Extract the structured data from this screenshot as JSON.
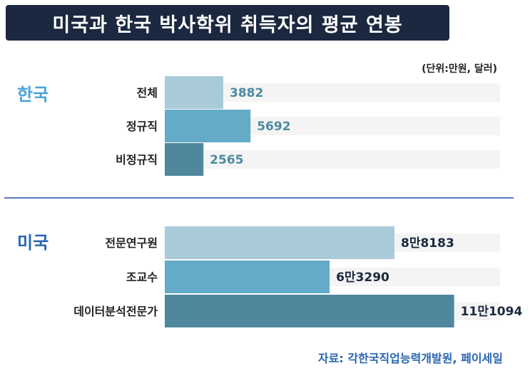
{
  "title": "미국과 한국 박사학위 취득자의 평균 연봉",
  "unit_note": "(단위:만원, 달러)",
  "source": "자료: 각한국직업능력개발원, 페이세일",
  "colors": {
    "title_bg": "#1b2840",
    "korea_label": "#4aa4d6",
    "us_label": "#2966b0",
    "divider": "#5877c4",
    "source": "#2966b0",
    "bar_light": "#a9cbd8",
    "bar_mid": "#63abc6",
    "bar_dark": "#4f879c",
    "korea_value": "#4e8aa0",
    "us_value": "#1b2840",
    "track": "#f4f4f4"
  },
  "chart_data": [
    {
      "type": "bar",
      "orientation": "horizontal",
      "group_label": "한국",
      "categories": [
        "전체",
        "정규직",
        "비정규직"
      ],
      "values": [
        3882,
        5692,
        2565
      ],
      "value_labels": [
        "3882",
        "5692",
        "2565"
      ],
      "unit": "만원"
    },
    {
      "type": "bar",
      "orientation": "horizontal",
      "group_label": "미국",
      "categories": [
        "전문연구원",
        "조교수",
        "데이터분석전문가"
      ],
      "values": [
        88183,
        63290,
        111094
      ],
      "value_labels": [
        "8만8183",
        "6만3290",
        "11만1094"
      ],
      "unit": "달러"
    }
  ]
}
